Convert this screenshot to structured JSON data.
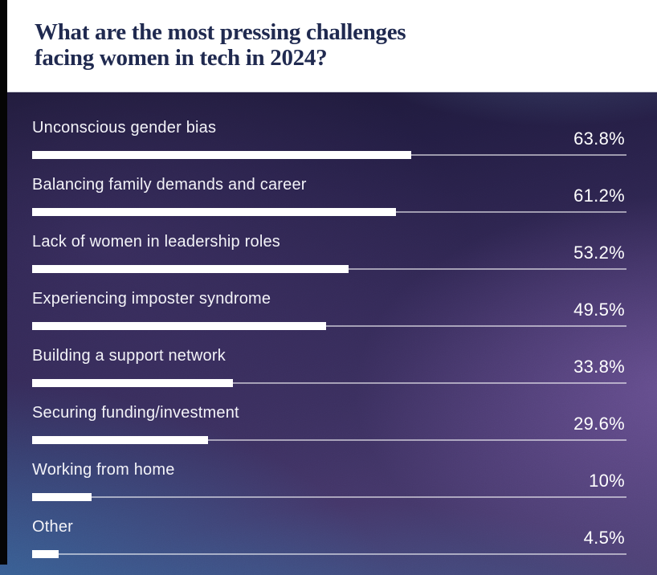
{
  "title": {
    "line1": "What are the most pressing challenges",
    "line2": "facing women in tech in 2024?"
  },
  "chart_data": {
    "type": "bar",
    "orientation": "horizontal",
    "title": "What are the most pressing challenges facing women in tech in 2024?",
    "categories": [
      "Unconscious gender bias",
      "Balancing family demands and career",
      "Lack of women in leadership roles",
      "Experiencing imposter syndrome",
      "Building a support network",
      "Securing funding/investment",
      "Working from home",
      "Other"
    ],
    "values": [
      63.8,
      61.2,
      53.2,
      49.5,
      33.8,
      29.6,
      10,
      4.5
    ],
    "value_labels": [
      "63.8%",
      "61.2%",
      "53.2%",
      "49.5%",
      "33.8%",
      "29.6%",
      "10%",
      "4.5%"
    ],
    "xlim": [
      0,
      100
    ],
    "grid": false,
    "legend": "none",
    "bar_color": "#ffffff",
    "track_color": "rgba(255,255,255,0.55)",
    "label_color": "#f3f3f8",
    "value_color": "#ffffff"
  },
  "colors": {
    "header_background": "#ffffff",
    "title_text": "#202a50",
    "frame": "#050505",
    "background_dark_navy": "#16132b",
    "background_purple": "#433668",
    "background_steel_blue": "#3276ac",
    "background_top_right_glow": "#6e96bc"
  }
}
